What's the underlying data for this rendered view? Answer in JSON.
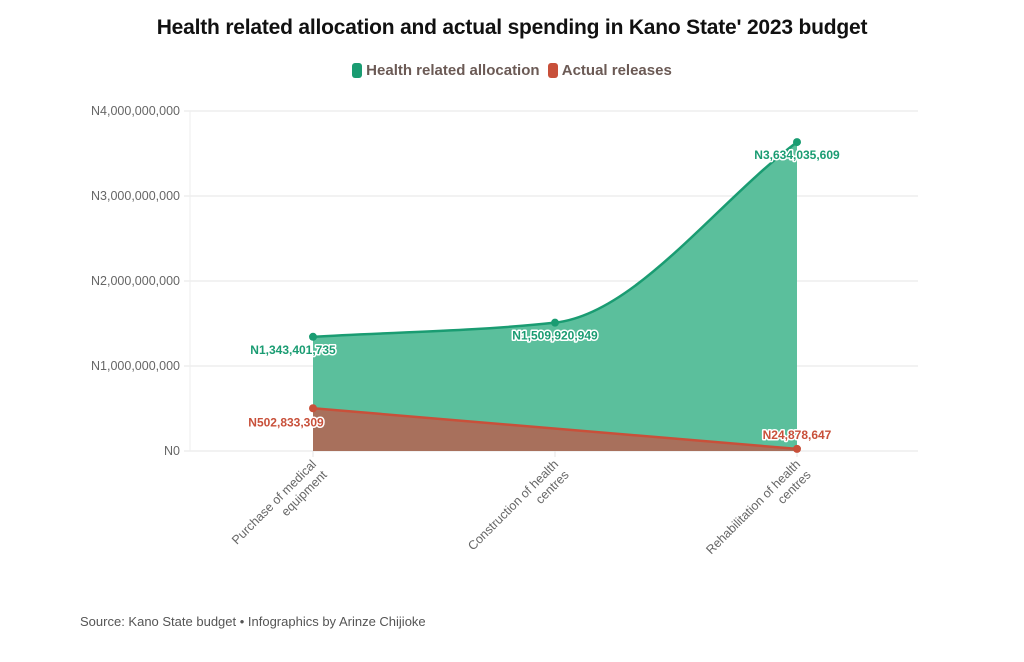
{
  "chart_data": {
    "type": "area",
    "title": "Health related allocation and actual spending in Kano State' 2023 budget",
    "categories": [
      [
        "Purchase of medical",
        "equipment"
      ],
      [
        "Construction of health",
        "centres"
      ],
      [
        "Rehabilitation of health",
        "centres"
      ]
    ],
    "series": [
      {
        "name": "Health related allocation",
        "color": "#1a9c72",
        "fill": "#5bbf9c",
        "values": [
          1343401735,
          1509920949,
          3634035609
        ],
        "labels": [
          "N1,343,401,735",
          "N1,509,920,949",
          "N3,634,035,609"
        ]
      },
      {
        "name": "Actual releases",
        "color": "#c8503a",
        "fill": "#a8705c",
        "values": [
          502833309,
          null,
          24878647
        ],
        "labels": [
          "N502,833,309",
          null,
          "N24,878,647"
        ]
      }
    ],
    "ylim": [
      0,
      4000000000
    ],
    "yticks": [
      0,
      1000000000,
      2000000000,
      3000000000,
      4000000000
    ],
    "ytick_labels": [
      "N0",
      "N1,000,000,000",
      "N2,000,000,000",
      "N3,000,000,000",
      "N4,000,000,000"
    ],
    "xlabel": "",
    "ylabel": "",
    "grid": true,
    "legend_position": "top-center",
    "source": "Source: Kano State budget • Infographics by Arinze Chijioke"
  }
}
